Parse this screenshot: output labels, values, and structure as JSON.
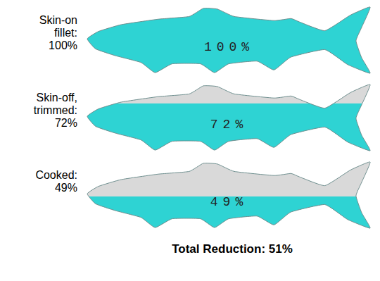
{
  "chart_data": {
    "type": "pictograph",
    "title": "Total Reduction: 51%",
    "categories": [
      "Skin-on fillet: 100%",
      "Skin-off, trimmed: 72%",
      "Cooked: 49%"
    ],
    "values": [
      100,
      72,
      49
    ],
    "value_labels": [
      "100%",
      "72%",
      "49%"
    ],
    "color": "#2ed3d3",
    "ylim": [
      0,
      100
    ],
    "data_labels": true,
    "tick_labels": false
  }
}
